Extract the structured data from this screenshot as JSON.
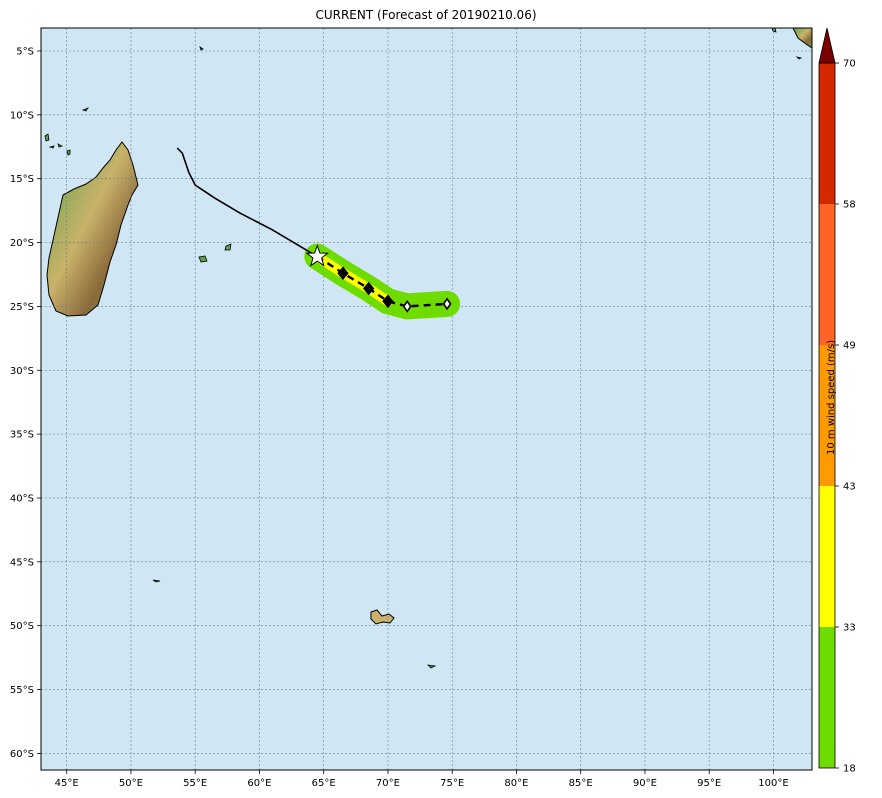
{
  "title": "CURRENT (Forecast of 20190210.06)",
  "colors": {
    "ocean": "#d0e6f5",
    "land_low": "#5aa34a",
    "land_mid": "#c9b26a",
    "land_high": "#8b6a3a",
    "track": "#000000",
    "swath_outer": "#6fdc00",
    "swath_inner": "#ffff00"
  },
  "map": {
    "lon_range": [
      43,
      103
    ],
    "lat_range": [
      -61.3,
      -3.2
    ],
    "lon_ticks": [
      "45°E",
      "50°E",
      "55°E",
      "60°E",
      "65°E",
      "70°E",
      "75°E",
      "80°E",
      "85°E",
      "90°E",
      "95°E",
      "100°E"
    ],
    "lat_ticks": [
      "5°S",
      "10°S",
      "15°S",
      "20°S",
      "25°S",
      "30°S",
      "35°S",
      "40°S",
      "45°S",
      "50°S",
      "55°S",
      "60°S"
    ],
    "past_track": [
      [
        53.6,
        -12.6
      ],
      [
        54.0,
        -13.0
      ],
      [
        54.5,
        -14.5
      ],
      [
        55.0,
        -15.5
      ],
      [
        56.5,
        -16.5
      ],
      [
        58.5,
        -17.7
      ],
      [
        61.0,
        -19.0
      ],
      [
        63.0,
        -20.2
      ],
      [
        64.5,
        -21.1
      ]
    ],
    "forecast_track": [
      [
        64.5,
        -21.1
      ],
      [
        66.5,
        -22.4
      ],
      [
        68.5,
        -23.6
      ],
      [
        70.0,
        -24.6
      ],
      [
        71.5,
        -25.0
      ],
      [
        74.6,
        -24.8
      ]
    ],
    "current_position": [
      64.5,
      -21.1
    ],
    "forecast_markers": [
      {
        "lon": 66.5,
        "lat": -22.4,
        "style": "filled"
      },
      {
        "lon": 68.5,
        "lat": -23.6,
        "style": "filled"
      },
      {
        "lon": 70.0,
        "lat": -24.6,
        "style": "filled"
      },
      {
        "lon": 71.5,
        "lat": -25.0,
        "style": "open"
      },
      {
        "lon": 74.6,
        "lat": -24.8,
        "style": "open"
      }
    ]
  },
  "colorbar": {
    "label": "10 m wind speed (m/s)",
    "ticks": [
      "18",
      "33",
      "43",
      "49",
      "58",
      "70"
    ],
    "segments": [
      {
        "from": "18",
        "to": "33",
        "color": "#6fdc00"
      },
      {
        "from": "33",
        "to": "43",
        "color": "#ffff00"
      },
      {
        "from": "43",
        "to": "49",
        "color": "#ff9a00"
      },
      {
        "from": "49",
        "to": "58",
        "color": "#ff6426"
      },
      {
        "from": "58",
        "to": "70",
        "color": "#d42800"
      }
    ],
    "extend_color": "#7a0000"
  }
}
